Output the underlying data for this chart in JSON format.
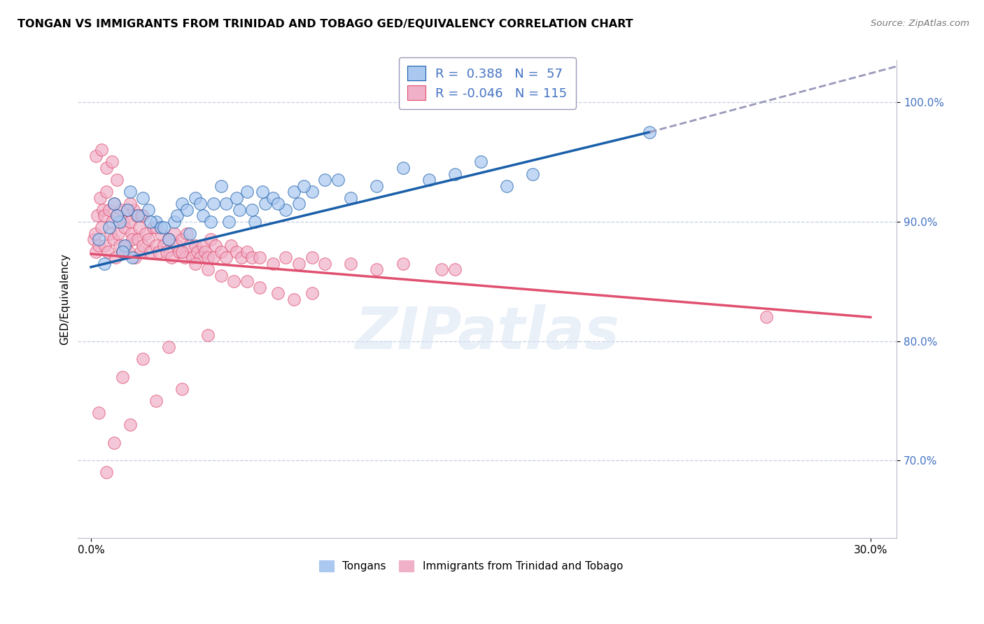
{
  "title": "TONGAN VS IMMIGRANTS FROM TRINIDAD AND TOBAGO GED/EQUIVALENCY CORRELATION CHART",
  "source": "Source: ZipAtlas.com",
  "ylabel": "GED/Equivalency",
  "xlim": [
    -0.5,
    31.0
  ],
  "ylim": [
    63.5,
    103.5
  ],
  "yticks": [
    70.0,
    80.0,
    90.0,
    100.0
  ],
  "ytick_labels": [
    "70.0%",
    "80.0%",
    "90.0%",
    "100.0%"
  ],
  "xtick_vals": [
    0.0,
    30.0
  ],
  "xtick_labels": [
    "0.0%",
    "30.0%"
  ],
  "blue_color": "#aac8f0",
  "pink_color": "#f0b0c8",
  "blue_line_color": "#1a5faa",
  "pink_line_color": "#e05070",
  "dash_line_color": "#9999bb",
  "watermark": "ZIPatlas",
  "legend_r1": "R =  0.388   N =  57",
  "legend_r2": "R = -0.046   N = 115",
  "legend_label1": "Tongans",
  "legend_label2": "Immigrants from Trinidad and Tobago",
  "blue_line_x0": 0.0,
  "blue_line_y0": 86.2,
  "blue_line_x1": 21.5,
  "blue_line_y1": 97.5,
  "blue_dash_x0": 21.5,
  "blue_dash_y0": 97.5,
  "blue_dash_x1": 31.0,
  "blue_dash_y1": 103.0,
  "pink_line_x0": 0.0,
  "pink_line_y0": 87.3,
  "pink_line_x1": 30.0,
  "pink_line_y1": 82.0,
  "blue_scatter_x": [
    0.3,
    0.5,
    0.7,
    0.9,
    1.1,
    1.3,
    1.5,
    1.6,
    1.8,
    2.0,
    2.2,
    2.5,
    2.7,
    3.0,
    3.2,
    3.5,
    3.8,
    4.0,
    4.3,
    4.7,
    5.0,
    5.3,
    5.7,
    6.0,
    6.3,
    6.7,
    7.0,
    7.5,
    8.0,
    8.5,
    9.0,
    10.0,
    11.0,
    12.0,
    13.0,
    15.0,
    17.0,
    21.5,
    1.0,
    1.2,
    1.4,
    2.3,
    2.8,
    3.3,
    3.7,
    4.2,
    4.6,
    5.2,
    5.6,
    6.2,
    6.6,
    7.2,
    7.8,
    8.2,
    9.5,
    14.0,
    16.0
  ],
  "blue_scatter_y": [
    88.5,
    86.5,
    89.5,
    91.5,
    90.0,
    88.0,
    92.5,
    87.0,
    90.5,
    92.0,
    91.0,
    90.0,
    89.5,
    88.5,
    90.0,
    91.5,
    89.0,
    92.0,
    90.5,
    91.5,
    93.0,
    90.0,
    91.0,
    92.5,
    90.0,
    91.5,
    92.0,
    91.0,
    91.5,
    92.5,
    93.5,
    92.0,
    93.0,
    94.5,
    93.5,
    95.0,
    94.0,
    97.5,
    90.5,
    87.5,
    91.0,
    90.0,
    89.5,
    90.5,
    91.0,
    91.5,
    90.0,
    91.5,
    92.0,
    91.0,
    92.5,
    91.5,
    92.5,
    93.0,
    93.5,
    94.0,
    93.0
  ],
  "pink_scatter_x": [
    0.1,
    0.15,
    0.2,
    0.25,
    0.3,
    0.35,
    0.4,
    0.45,
    0.5,
    0.55,
    0.6,
    0.65,
    0.7,
    0.75,
    0.8,
    0.85,
    0.9,
    0.95,
    1.0,
    1.05,
    1.1,
    1.15,
    1.2,
    1.25,
    1.3,
    1.35,
    1.4,
    1.45,
    1.5,
    1.55,
    1.6,
    1.65,
    1.7,
    1.75,
    1.8,
    1.85,
    1.9,
    1.95,
    2.0,
    2.1,
    2.2,
    2.3,
    2.4,
    2.5,
    2.6,
    2.7,
    2.8,
    2.9,
    3.0,
    3.1,
    3.2,
    3.3,
    3.4,
    3.5,
    3.6,
    3.7,
    3.8,
    3.9,
    4.0,
    4.1,
    4.2,
    4.3,
    4.4,
    4.5,
    4.6,
    4.7,
    4.8,
    5.0,
    5.2,
    5.4,
    5.6,
    5.8,
    6.0,
    6.2,
    6.5,
    7.0,
    7.5,
    8.0,
    8.5,
    9.0,
    10.0,
    11.0,
    12.0,
    13.5,
    14.0,
    0.2,
    0.4,
    0.6,
    0.8,
    1.0,
    1.5,
    2.0,
    2.5,
    3.0,
    3.5,
    4.0,
    4.5,
    5.0,
    5.5,
    6.0,
    6.5,
    7.2,
    7.8,
    8.5,
    0.3,
    0.6,
    0.9,
    1.2,
    1.5,
    2.0,
    2.5,
    3.0,
    3.5,
    4.5,
    26.0
  ],
  "pink_scatter_y": [
    88.5,
    89.0,
    87.5,
    90.5,
    88.0,
    92.0,
    89.5,
    91.0,
    90.5,
    88.0,
    92.5,
    87.5,
    91.0,
    89.0,
    90.0,
    88.5,
    91.5,
    87.0,
    90.5,
    89.0,
    88.0,
    91.0,
    87.5,
    90.0,
    89.5,
    88.0,
    91.0,
    87.5,
    90.0,
    89.0,
    88.5,
    91.0,
    87.0,
    90.5,
    88.5,
    89.5,
    87.5,
    90.5,
    88.0,
    89.0,
    88.5,
    87.5,
    89.5,
    88.0,
    87.5,
    89.0,
    88.0,
    87.5,
    88.5,
    87.0,
    89.0,
    88.0,
    87.5,
    88.5,
    87.0,
    89.0,
    88.0,
    87.0,
    88.0,
    87.5,
    87.0,
    88.0,
    87.5,
    87.0,
    88.5,
    87.0,
    88.0,
    87.5,
    87.0,
    88.0,
    87.5,
    87.0,
    87.5,
    87.0,
    87.0,
    86.5,
    87.0,
    86.5,
    87.0,
    86.5,
    86.5,
    86.0,
    86.5,
    86.0,
    86.0,
    95.5,
    96.0,
    94.5,
    95.0,
    93.5,
    91.5,
    90.5,
    89.5,
    88.5,
    87.5,
    86.5,
    86.0,
    85.5,
    85.0,
    85.0,
    84.5,
    84.0,
    83.5,
    84.0,
    74.0,
    69.0,
    71.5,
    77.0,
    73.0,
    78.5,
    75.0,
    79.5,
    76.0,
    80.5,
    82.0
  ]
}
